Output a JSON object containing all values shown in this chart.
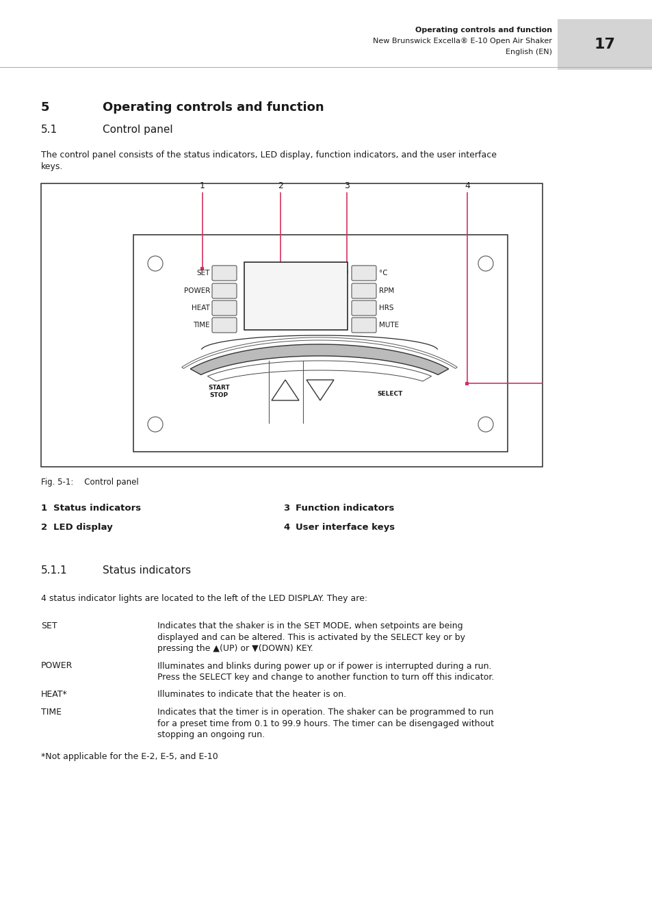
{
  "page_title_bold": "Operating controls and function",
  "page_title_sub1": "New Brunswick Excella® E-10 Open Air Shaker",
  "page_title_sub2": "English (EN)",
  "page_number": "17",
  "header_gray_bg": "#d4d4d4",
  "section_num": "5",
  "section_title": "Operating controls and function",
  "subsection_num": "5.1",
  "subsection_title": "Control panel",
  "intro_line1": "The control panel consists of the status indicators, LED display, function indicators, and the user interface",
  "intro_line2": "keys.",
  "fig_caption_pre": "Fig. 5-1:",
  "fig_caption_post": "   Control panel",
  "callout_color": "#d43060",
  "left_btn_labels": [
    "SET",
    "POWER",
    "HEAT",
    "TIME"
  ],
  "right_btn_labels": [
    "°C",
    "RPM",
    "HRS",
    "MUTE"
  ],
  "legend": [
    {
      "n1": "1",
      "l1": "Status indicators",
      "n2": "3",
      "l2": "Function indicators"
    },
    {
      "n1": "2",
      "l1": "LED display",
      "n2": "4",
      "l2": "User interface keys"
    }
  ],
  "subsection2_num": "5.1.1",
  "subsection2_title": "Status indicators",
  "status_intro": "4 status indicator lights are located to the left of the LED DISPLAY. They are:",
  "status_labels": [
    "SET",
    "POWER",
    "HEAT*",
    "TIME"
  ],
  "status_texts": [
    [
      "Indicates that the shaker is in the ",
      "SET MODE,",
      " when setpoints are being",
      "displayed and can be altered. This is activated by the ",
      "SELECT",
      " key or by",
      "pressing the ▲(UP) or ▼(DOWN) KEY."
    ],
    [
      "Illuminates and blinks during power ",
      "up",
      " or if power is interrupted during a run.",
      "Press the ",
      "SELECT",
      " key and change to another function to turn off this indicator."
    ],
    [
      "Illuminates to indicate that the heater is on."
    ],
    [
      "Indicates that the timer is in operation. The shaker can be programmed to run",
      "for a preset time from 0.1 to 99.9 hours. The timer can be disengaged without",
      "stopping an ongoing run."
    ]
  ],
  "status_bold_words": [
    [
      "SET MODE,",
      "SELECT",
      "▲(UP)",
      "▼(DOWN) KEY."
    ],
    [
      "up",
      "SELECT"
    ],
    [],
    []
  ],
  "footnote": "*Not applicable for the E-2, E-5, and E-10",
  "bg_color": "#ffffff",
  "text_color": "#1a1a1a"
}
